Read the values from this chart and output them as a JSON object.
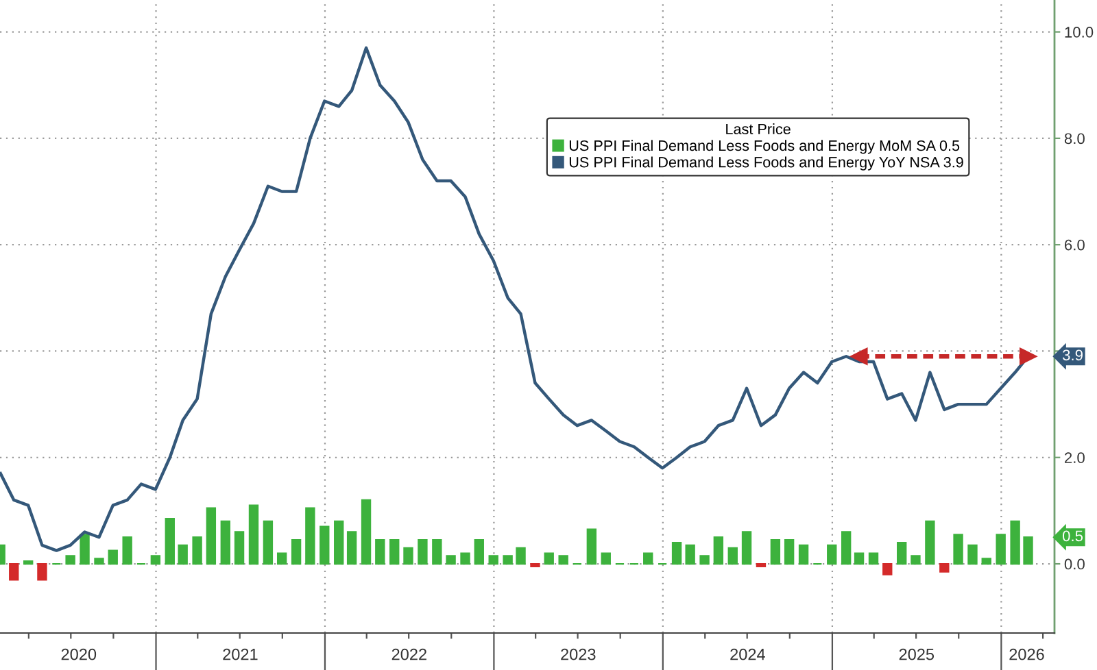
{
  "chart_data": {
    "type": "bar",
    "x": [
      "2020-01-31",
      "2020-02-29",
      "2020-03-31",
      "2020-04-30",
      "2020-05-31",
      "2020-06-30",
      "2020-07-31",
      "2020-08-31",
      "2020-09-30",
      "2020-10-31",
      "2020-11-30",
      "2020-12-31",
      "2021-01-31",
      "2021-02-28",
      "2021-03-31",
      "2021-04-30",
      "2021-05-31",
      "2021-06-30",
      "2021-07-31",
      "2021-08-31",
      "2021-09-30",
      "2021-10-31",
      "2021-11-30",
      "2021-12-31",
      "2022-01-31",
      "2022-02-28",
      "2022-03-31",
      "2022-04-30",
      "2022-05-31",
      "2022-06-30",
      "2022-07-31",
      "2022-08-31",
      "2022-09-30",
      "2022-10-31",
      "2022-11-30",
      "2022-12-31",
      "2023-01-31",
      "2023-02-28",
      "2023-03-31",
      "2023-04-30",
      "2023-05-31",
      "2023-06-30",
      "2023-07-31",
      "2023-08-31",
      "2023-09-30",
      "2023-10-31",
      "2023-11-30",
      "2023-12-31",
      "2024-01-31",
      "2024-02-29",
      "2024-03-31",
      "2024-04-30",
      "2024-05-31",
      "2024-06-30",
      "2024-07-31",
      "2024-08-31",
      "2024-09-30",
      "2024-10-31",
      "2024-11-30",
      "2024-12-31",
      "2025-01-31",
      "2025-02-28",
      "2025-03-31",
      "2025-04-30",
      "2025-05-31",
      "2025-06-30",
      "2025-07-31",
      "2025-08-31",
      "2025-09-30",
      "2025-10-31",
      "2025-11-30",
      "2025-12-31",
      "2026-01-31",
      "2026-02-28"
    ],
    "series": [
      {
        "name": "US PPI Final Demand Less Foods and Energy MoM SA 0.5",
        "color": "#3db23d",
        "values": [
          0.35,
          -0.3,
          0.05,
          -0.3,
          0.0,
          0.15,
          0.55,
          0.1,
          0.25,
          0.5,
          0.0,
          0.15,
          0.85,
          0.35,
          0.5,
          1.05,
          0.8,
          0.6,
          1.1,
          0.8,
          0.2,
          0.45,
          1.05,
          0.7,
          0.8,
          0.6,
          1.2,
          0.45,
          0.45,
          0.3,
          0.45,
          0.45,
          0.15,
          0.2,
          0.45,
          0.15,
          0.15,
          0.3,
          -0.05,
          0.2,
          0.15,
          0.0,
          0.65,
          0.2,
          0.0,
          0.0,
          0.2,
          0.0,
          0.4,
          0.35,
          0.15,
          0.5,
          0.3,
          0.6,
          -0.05,
          0.45,
          0.45,
          0.35,
          0.0,
          0.35,
          0.6,
          0.2,
          0.2,
          -0.2,
          0.4,
          0.15,
          0.8,
          -0.15,
          0.55,
          0.35,
          0.1,
          0.55,
          0.8,
          0.5
        ],
        "colors": [
          "#3db23d",
          "#d42a2a",
          "#3db23d",
          "#d42a2a",
          "#3db23d",
          "#3db23d",
          "#3db23d",
          "#3db23d",
          "#3db23d",
          "#3db23d",
          "#3db23d",
          "#3db23d",
          "#3db23d",
          "#3db23d",
          "#3db23d",
          "#3db23d",
          "#3db23d",
          "#3db23d",
          "#3db23d",
          "#3db23d",
          "#3db23d",
          "#3db23d",
          "#3db23d",
          "#3db23d",
          "#3db23d",
          "#3db23d",
          "#3db23d",
          "#3db23d",
          "#3db23d",
          "#3db23d",
          "#3db23d",
          "#3db23d",
          "#3db23d",
          "#3db23d",
          "#3db23d",
          "#3db23d",
          "#3db23d",
          "#3db23d",
          "#d42a2a",
          "#3db23d",
          "#3db23d",
          "#3db23d",
          "#3db23d",
          "#3db23d",
          "#3db23d",
          "#3db23d",
          "#3db23d",
          "#3db23d",
          "#3db23d",
          "#3db23d",
          "#3db23d",
          "#3db23d",
          "#3db23d",
          "#3db23d",
          "#d42a2a",
          "#3db23d",
          "#3db23d",
          "#3db23d",
          "#3db23d",
          "#3db23d",
          "#3db23d",
          "#3db23d",
          "#3db23d",
          "#d42a2a",
          "#3db23d",
          "#3db23d",
          "#3db23d",
          "#d42a2a",
          "#3db23d",
          "#3db23d",
          "#3db23d",
          "#3db23d",
          "#3db23d",
          "#3db23d"
        ]
      },
      {
        "name": "US PPI Final Demand Less Foods and Energy YoY NSA 3.9",
        "type": "line",
        "color": "#34587a",
        "values": [
          1.7,
          1.2,
          1.1,
          0.35,
          0.25,
          0.35,
          0.6,
          0.5,
          1.1,
          1.2,
          1.5,
          1.4,
          2.0,
          2.7,
          3.1,
          4.7,
          5.4,
          5.9,
          6.4,
          7.1,
          7.0,
          7.0,
          8.0,
          8.7,
          8.6,
          8.9,
          9.7,
          9.0,
          8.7,
          8.3,
          7.6,
          7.2,
          7.2,
          6.9,
          6.2,
          5.7,
          5.0,
          4.7,
          3.4,
          3.1,
          2.8,
          2.6,
          2.7,
          2.5,
          2.3,
          2.2,
          2.0,
          1.8,
          2.0,
          2.2,
          2.3,
          2.6,
          2.7,
          3.3,
          2.6,
          2.8,
          3.3,
          3.6,
          3.4,
          3.8,
          3.9,
          3.8,
          3.8,
          3.1,
          3.2,
          2.7,
          3.6,
          2.9,
          3.0,
          3.0,
          3.0,
          3.3,
          3.6,
          3.9
        ]
      },
      {
        "type": "line",
        "color": "#c62828",
        "line_style": "dashed",
        "marker": "triangle",
        "x": [
          "2025-02-28",
          "2026-02-28"
        ],
        "values": [
          3.9,
          3.9
        ]
      }
    ],
    "annotations": [
      "0.5",
      "3.9"
    ],
    "legend_title": "Last Price",
    "legend": "top right",
    "grid": true,
    "xlim": [
      "2020-01-30",
      "2026-04-26"
    ],
    "xticks": [
      {
        "value": "2020-04-01",
        "label": null
      },
      {
        "value": "2020-07-01",
        "label": null
      },
      {
        "value": "2020-07-18",
        "label": "2020"
      },
      {
        "value": "2020-10-01",
        "label": null
      },
      {
        "value": "2021-01-01",
        "label": null
      },
      {
        "value": "2021-04-01",
        "label": null
      },
      {
        "value": "2021-07-01",
        "label": null
      },
      {
        "value": "2021-07-02",
        "label": "2021"
      },
      {
        "value": "2021-10-01",
        "label": null
      },
      {
        "value": "2022-01-01",
        "label": null
      },
      {
        "value": "2022-04-01",
        "label": null
      },
      {
        "value": "2022-07-01",
        "label": null
      },
      {
        "value": "2022-07-02",
        "label": "2022"
      },
      {
        "value": "2022-10-01",
        "label": null
      },
      {
        "value": "2023-01-01",
        "label": null
      },
      {
        "value": "2023-04-01",
        "label": null
      },
      {
        "value": "2023-07-01",
        "label": null
      },
      {
        "value": "2023-07-02",
        "label": "2023"
      },
      {
        "value": "2023-10-01",
        "label": null
      },
      {
        "value": "2024-01-01",
        "label": null
      },
      {
        "value": "2024-04-01",
        "label": null
      },
      {
        "value": "2024-07-01",
        "label": null
      },
      {
        "value": "2024-07-02",
        "label": "2024"
      },
      {
        "value": "2024-10-01",
        "label": null
      },
      {
        "value": "2025-01-01",
        "label": null
      },
      {
        "value": "2025-04-01",
        "label": null
      },
      {
        "value": "2025-07-01",
        "label": null
      },
      {
        "value": "2025-07-02",
        "label": "2025"
      },
      {
        "value": "2025-10-01",
        "label": null
      },
      {
        "value": "2026-01-01",
        "label": null
      },
      {
        "value": "2026-02-25",
        "label": "2026"
      },
      {
        "value": "2026-04-01",
        "label": null
      }
    ],
    "ylim": [
      -1.3,
      10.6
    ],
    "yticks": [
      {
        "value": 0,
        "label": "0.0"
      },
      {
        "value": 2,
        "label": "2.0"
      },
      {
        "value": 4,
        "label": null
      },
      {
        "value": 6,
        "label": "6.0"
      },
      {
        "value": 8,
        "label": "8.0"
      },
      {
        "value": 10,
        "label": "10.0"
      }
    ]
  }
}
